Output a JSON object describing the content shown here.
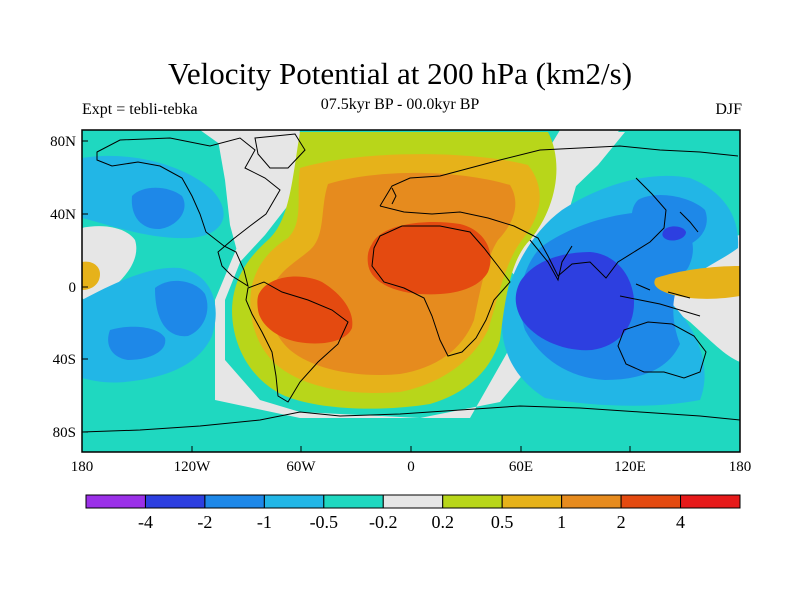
{
  "title": "Velocity Potential at 200 hPa (km2/s)",
  "subtitle_left": "Expt = tebli-tebka",
  "subtitle_center": "07.5kyr BP - 00.0kyr BP",
  "subtitle_right": "DJF",
  "lat_ticks": [
    "80N",
    "40N",
    "0",
    "40S",
    "80S"
  ],
  "lon_ticks": [
    "180",
    "120W",
    "60W",
    "0",
    "60E",
    "120E",
    "180"
  ],
  "colorbar": {
    "colors": [
      "#9b30e8",
      "#2d3fe0",
      "#1e88e8",
      "#22b6e6",
      "#1fd8c0",
      "#e6e6e6",
      "#b8d61a",
      "#e6b21a",
      "#e68b1e",
      "#e44a10",
      "#e61a1a"
    ],
    "labels": [
      "-4",
      "-2",
      "-1",
      "-0.5",
      "-0.2",
      "0.2",
      "0.5",
      "1",
      "2",
      "4"
    ]
  },
  "colors": {
    "background": "#1fd8c0",
    "land_outline": "#000000",
    "frame": "#000000"
  }
}
